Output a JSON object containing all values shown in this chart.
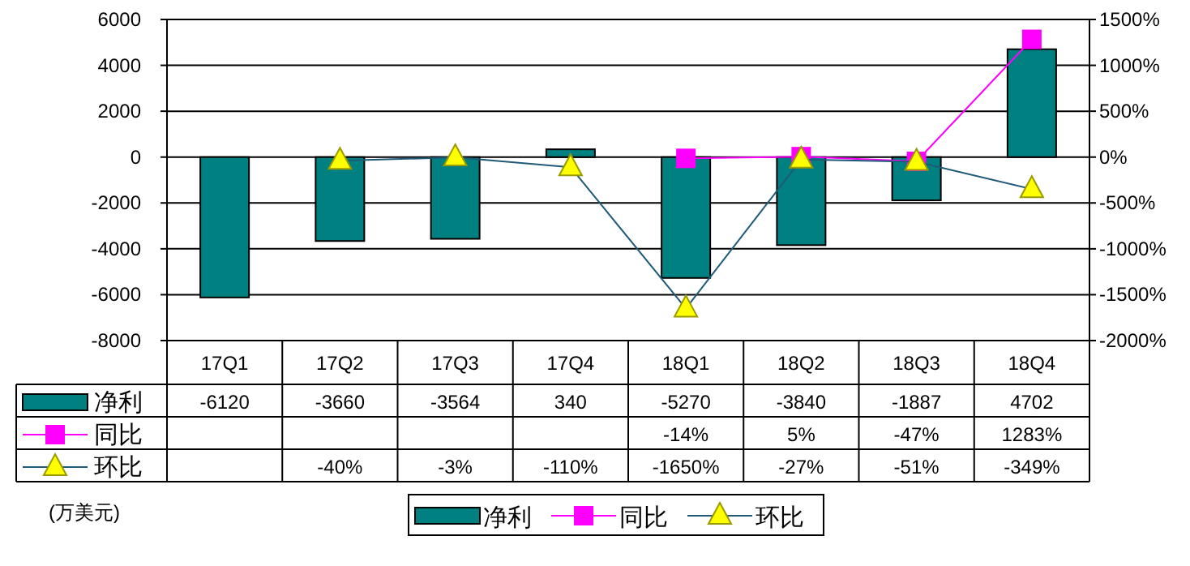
{
  "chart_data": {
    "type": "bar",
    "categories": [
      "17Q1",
      "17Q2",
      "17Q3",
      "17Q4",
      "18Q1",
      "18Q2",
      "18Q3",
      "18Q4"
    ],
    "series": [
      {
        "name": "净利",
        "color": "#008080",
        "values": [
          -6120,
          -3660,
          -3564,
          340,
          -5270,
          -3840,
          -1887,
          4702
        ],
        "value_labels": [
          "-6120",
          "-3660",
          "-3564",
          "340",
          "-5270",
          "-3840",
          "-1887",
          "4702"
        ]
      },
      {
        "name": "同比",
        "type": "line",
        "axis": "y2",
        "color": "#ff00ff",
        "marker": "square",
        "values": [
          null,
          null,
          null,
          null,
          -14,
          5,
          -47,
          1283
        ],
        "value_labels": [
          null,
          null,
          null,
          null,
          "-14%",
          "5%",
          "-47%",
          "1283%"
        ]
      },
      {
        "name": "环比",
        "type": "line",
        "axis": "y2",
        "color": "#1f5a78",
        "marker": "triangle",
        "values": [
          null,
          -40,
          -3,
          -110,
          -1650,
          -27,
          -51,
          -349
        ],
        "value_labels": [
          null,
          "-40%",
          "-3%",
          "-110%",
          "-1650%",
          "-27%",
          "-51%",
          "-349%"
        ]
      }
    ],
    "ylim": [
      -8000,
      6000
    ],
    "yticks": [
      -8000,
      -6000,
      -4000,
      -2000,
      0,
      2000,
      4000,
      6000
    ],
    "y2lim": [
      -2000,
      1500
    ],
    "y2ticks": [
      {
        "value": -2000,
        "label": "-2000%"
      },
      {
        "value": -1500,
        "label": "-1500%"
      },
      {
        "value": -1000,
        "label": "-1000%"
      },
      {
        "value": -500,
        "label": "-500%"
      },
      {
        "value": 0,
        "label": "0%"
      },
      {
        "value": 500,
        "label": "500%"
      },
      {
        "value": 1000,
        "label": "1000%"
      },
      {
        "value": 1500,
        "label": "1500%"
      }
    ],
    "grid": "y",
    "legend": "bottom",
    "annotations": [
      "(万美元)"
    ]
  }
}
